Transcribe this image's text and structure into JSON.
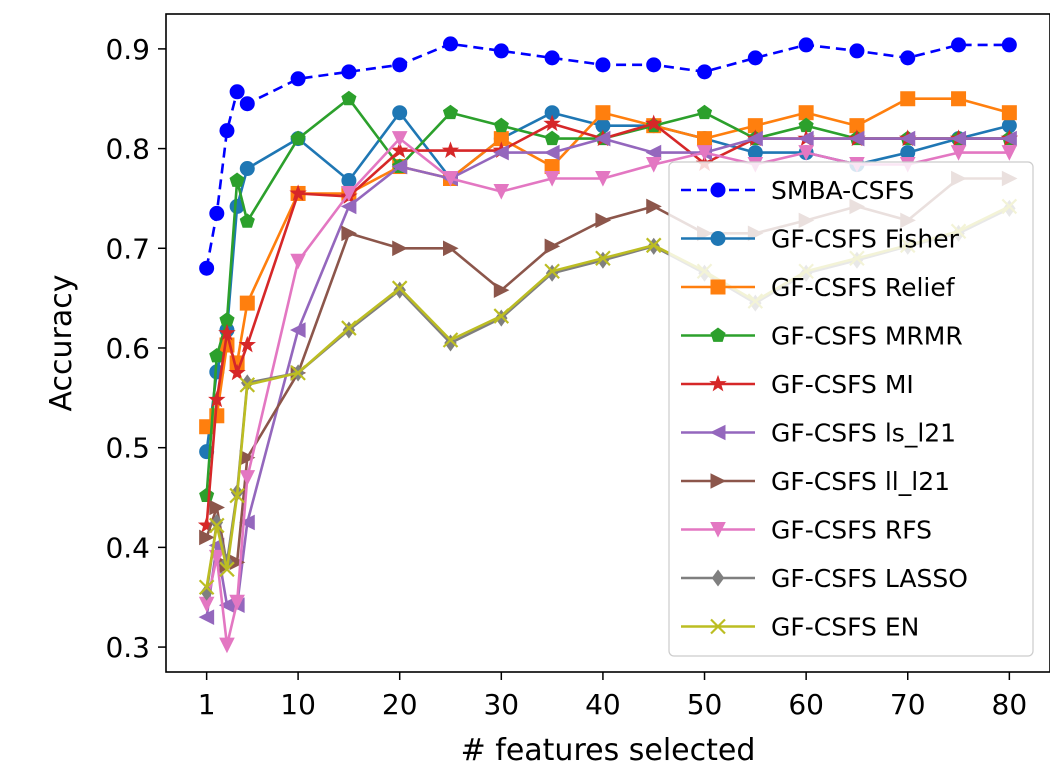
{
  "chart_data": {
    "type": "line",
    "xlabel": "# features selected",
    "ylabel": "Accuracy",
    "xlim": [
      -3,
      84
    ],
    "ylim": [
      0.275,
      0.935
    ],
    "xticks": [
      1,
      10,
      20,
      30,
      40,
      50,
      60,
      70,
      80
    ],
    "yticks": [
      0.3,
      0.4,
      0.5,
      0.6,
      0.7,
      0.8,
      0.9
    ],
    "ytick_labels": [
      "0.3",
      "0.4",
      "0.5",
      "0.6",
      "0.7",
      "0.8",
      "0.9"
    ],
    "xtick_labels": [
      "1",
      "10",
      "20",
      "30",
      "40",
      "50",
      "60",
      "70",
      "80"
    ],
    "grid": false,
    "legend_position": "lower-right",
    "x": [
      1,
      2,
      3,
      4,
      5,
      10,
      15,
      20,
      25,
      30,
      35,
      40,
      45,
      50,
      55,
      60,
      65,
      70,
      75,
      80
    ],
    "series": [
      {
        "name": "SMBA-CSFS",
        "color": "#0000ff",
        "marker": "circle",
        "dashed": true,
        "values": [
          0.68,
          0.735,
          0.818,
          0.857,
          0.845,
          0.87,
          0.877,
          0.884,
          0.905,
          0.898,
          0.891,
          0.884,
          0.884,
          0.877,
          0.891,
          0.904,
          0.898,
          0.891,
          0.904,
          0.904
        ]
      },
      {
        "name": "GF-CSFS Fisher",
        "color": "#1f77b4",
        "marker": "circle",
        "values": [
          0.496,
          0.576,
          0.618,
          0.742,
          0.78,
          0.81,
          0.768,
          0.836,
          0.77,
          0.81,
          0.836,
          0.823,
          0.823,
          0.81,
          0.796,
          0.796,
          0.784,
          0.796,
          0.81,
          0.823
        ]
      },
      {
        "name": "GF-CSFS Relief",
        "color": "#ff7f0e",
        "marker": "square",
        "values": [
          0.521,
          0.532,
          0.603,
          0.585,
          0.645,
          0.755,
          0.755,
          0.782,
          0.77,
          0.81,
          0.782,
          0.836,
          0.823,
          0.81,
          0.823,
          0.836,
          0.823,
          0.85,
          0.85,
          0.836
        ]
      },
      {
        "name": "GF-CSFS MRMR",
        "color": "#2ca02c",
        "marker": "pentagon",
        "values": [
          0.452,
          0.592,
          0.628,
          0.768,
          0.727,
          0.81,
          0.85,
          0.782,
          0.836,
          0.823,
          0.81,
          0.81,
          0.823,
          0.836,
          0.81,
          0.823,
          0.81,
          0.81,
          0.81,
          0.81
        ]
      },
      {
        "name": "GF-CSFS MI",
        "color": "#d62728",
        "marker": "star",
        "values": [
          0.422,
          0.548,
          0.615,
          0.575,
          0.603,
          0.755,
          0.752,
          0.798,
          0.798,
          0.798,
          0.825,
          0.81,
          0.825,
          0.785,
          0.81,
          0.81,
          0.81,
          0.81,
          0.81,
          0.81
        ]
      },
      {
        "name": "GF-CSFS ls_l21",
        "color": "#9467bd",
        "marker": "triangle-left",
        "values": [
          0.33,
          0.402,
          0.342,
          0.342,
          0.425,
          0.618,
          0.742,
          0.782,
          0.77,
          0.796,
          0.796,
          0.81,
          0.796,
          0.796,
          0.81,
          0.81,
          0.81,
          0.81,
          0.81,
          0.81
        ]
      },
      {
        "name": "GF-CSFS ll_l21",
        "color": "#8c564b",
        "marker": "triangle-right",
        "values": [
          0.41,
          0.44,
          0.382,
          0.385,
          0.49,
          0.575,
          0.715,
          0.7,
          0.7,
          0.658,
          0.702,
          0.728,
          0.742,
          0.715,
          0.715,
          0.728,
          0.742,
          0.728,
          0.77,
          0.77
        ]
      },
      {
        "name": "GF-CSFS RFS",
        "color": "#e377c2",
        "marker": "triangle-down",
        "values": [
          0.343,
          0.39,
          0.302,
          0.345,
          0.47,
          0.687,
          0.755,
          0.81,
          0.77,
          0.757,
          0.77,
          0.77,
          0.784,
          0.796,
          0.784,
          0.796,
          0.784,
          0.784,
          0.796,
          0.796
        ]
      },
      {
        "name": "GF-CSFS LASSO",
        "color": "#7f7f7f",
        "marker": "diamond",
        "values": [
          0.355,
          0.425,
          0.385,
          0.455,
          0.565,
          0.575,
          0.618,
          0.658,
          0.605,
          0.63,
          0.675,
          0.688,
          0.702,
          0.675,
          0.645,
          0.675,
          0.688,
          0.702,
          0.715,
          0.74
        ]
      },
      {
        "name": "GF-CSFS EN",
        "color": "#bcbd22",
        "marker": "x",
        "values": [
          0.36,
          0.422,
          0.378,
          0.452,
          0.563,
          0.575,
          0.62,
          0.66,
          0.608,
          0.632,
          0.677,
          0.69,
          0.703,
          0.677,
          0.647,
          0.677,
          0.69,
          0.703,
          0.717,
          0.742
        ]
      }
    ]
  }
}
